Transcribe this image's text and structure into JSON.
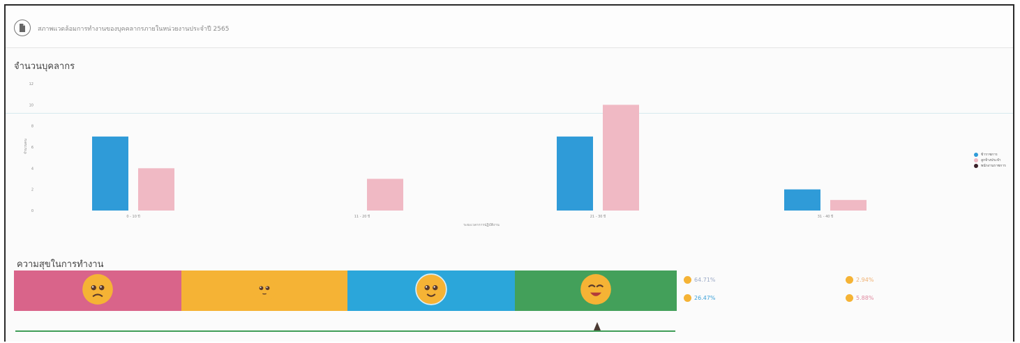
{
  "header": {
    "title": "สภาพแวดล้อมการทำงานของบุคคลากรภายในหน่วยงานประจำปี 2565"
  },
  "personnel_section": {
    "title": "จำนวนบุคลากร"
  },
  "chart_data": {
    "type": "bar",
    "categories": [
      "0 - 10 ปี",
      "11 - 20 ปี",
      "21 - 30 ปี",
      "31 - 40 ปี"
    ],
    "y_ticks": [
      "12",
      "10",
      "8",
      "6",
      "4",
      "2",
      "0"
    ],
    "ylim": [
      0,
      12
    ],
    "ylabel": "จำนวนคน",
    "xlabel": "ระยะเวลาการปฏิบัติงาน",
    "legend_position": "right",
    "series": [
      {
        "name": "ข้าราชการ",
        "color": "#2f9bd8",
        "values": [
          7,
          0,
          7,
          2
        ]
      },
      {
        "name": "ลูกจ้างประจำ",
        "color": "#f0b9c4",
        "values": [
          4,
          3,
          10,
          1
        ]
      },
      {
        "name": "พนักงานราชการ",
        "color": "#3a2028",
        "values": [
          0,
          0,
          0,
          0
        ]
      }
    ]
  },
  "happiness_section": {
    "title": "ความสุขในการทำงาน",
    "segments": [
      {
        "name": "very-unhappy",
        "color": "#d9648a",
        "face": "sad"
      },
      {
        "name": "neutral",
        "color": "#f5b335",
        "face": "neutral"
      },
      {
        "name": "happy",
        "color": "#2ba6da",
        "face": "smile"
      },
      {
        "name": "very-happy",
        "color": "#43a05a",
        "face": "laugh"
      }
    ],
    "stats": [
      {
        "text": "64.71%",
        "color": "#9aa9c6"
      },
      {
        "text": "26.47%",
        "color": "#3aa0d8"
      },
      {
        "text": "2.94%",
        "color": "#f0b070"
      },
      {
        "text": "5.88%",
        "color": "#e08aa0"
      }
    ]
  }
}
